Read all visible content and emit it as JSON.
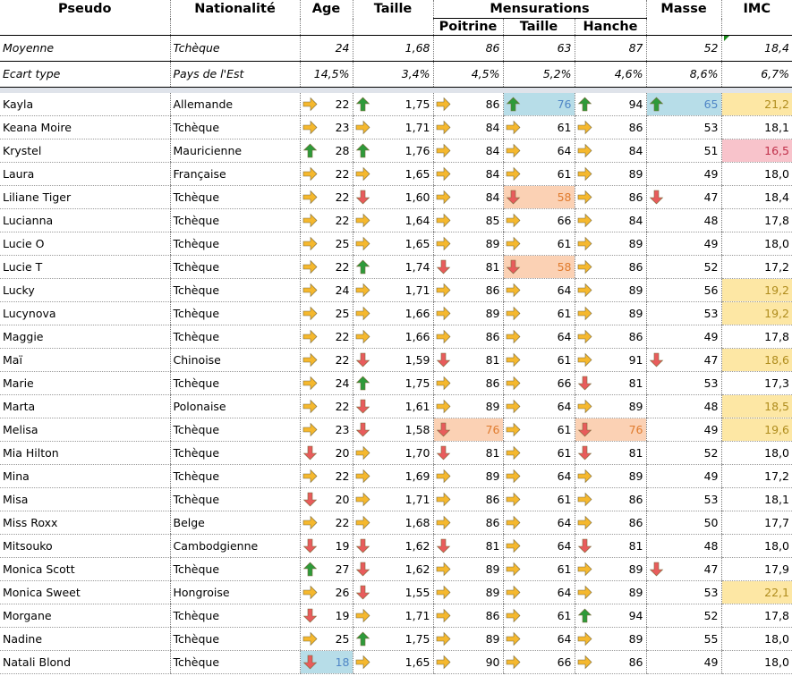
{
  "headers": {
    "pseudo": "Pseudo",
    "nationalite": "Nationalité",
    "age": "Age",
    "taille": "Taille",
    "mensurations": "Mensurations",
    "poitrine": "Poitrine",
    "taille2": "Taille",
    "hanche": "Hanche",
    "masse": "Masse",
    "imc": "IMC"
  },
  "summary": [
    {
      "label": "Moyenne",
      "nat": "Tchèque",
      "age": "24",
      "taille": "1,68",
      "poitrine": "86",
      "taille2": "63",
      "hanche": "87",
      "masse": "52",
      "imc": "18,4"
    },
    {
      "label": "Ecart type",
      "nat": "Pays de l'Est",
      "age": "14,5%",
      "taille": "3,4%",
      "poitrine": "4,5%",
      "taille2": "5,2%",
      "hanche": "4,6%",
      "masse": "8,6%",
      "imc": "6,7%"
    }
  ],
  "colors": {
    "arrow_up": "#2e9a3a",
    "arrow_flat": "#f5b82e",
    "arrow_down": "#e85c5c",
    "highlight_blue": "#b7dde8",
    "highlight_peach": "#fbd1b4",
    "highlight_yellow": "#fde7a4",
    "highlight_pink": "#f8c3cb",
    "blue_text": "#4f86c6",
    "orange_text": "#e07b2e"
  },
  "rows": [
    {
      "name": "Kayla",
      "nat": "Allemande",
      "age": "22",
      "age_i": "flat",
      "taille": "1,75",
      "taille_i": "up",
      "poitrine": "86",
      "poitrine_i": "flat",
      "taille2": "76",
      "taille2_i": "up",
      "taille2_hl": "blue",
      "hanche": "94",
      "hanche_i": "up",
      "masse": "65",
      "masse_i": "up",
      "masse_hl": "blue",
      "imc": "21,2",
      "imc_hl": "yellow"
    },
    {
      "name": "Keana Moire",
      "nat": "Tchèque",
      "age": "23",
      "age_i": "flat",
      "taille": "1,71",
      "taille_i": "flat",
      "poitrine": "84",
      "poitrine_i": "flat",
      "taille2": "61",
      "taille2_i": "flat",
      "hanche": "86",
      "hanche_i": "flat",
      "masse": "53",
      "masse_i": "",
      "imc": "18,1"
    },
    {
      "name": "Krystel",
      "nat": "Mauricienne",
      "age": "28",
      "age_i": "up",
      "taille": "1,76",
      "taille_i": "up",
      "poitrine": "84",
      "poitrine_i": "flat",
      "taille2": "64",
      "taille2_i": "flat",
      "hanche": "84",
      "hanche_i": "flat",
      "masse": "51",
      "masse_i": "",
      "imc": "16,5",
      "imc_hl": "pink"
    },
    {
      "name": "Laura",
      "nat": "Française",
      "age": "22",
      "age_i": "flat",
      "taille": "1,65",
      "taille_i": "flat",
      "poitrine": "84",
      "poitrine_i": "flat",
      "taille2": "61",
      "taille2_i": "flat",
      "hanche": "89",
      "hanche_i": "flat",
      "masse": "49",
      "masse_i": "",
      "imc": "18,0"
    },
    {
      "name": "Liliane Tiger",
      "nat": "Tchèque",
      "age": "22",
      "age_i": "flat",
      "taille": "1,60",
      "taille_i": "down",
      "poitrine": "84",
      "poitrine_i": "flat",
      "taille2": "58",
      "taille2_i": "down",
      "taille2_hl": "peach",
      "hanche": "86",
      "hanche_i": "flat",
      "masse": "47",
      "masse_i": "down",
      "imc": "18,4"
    },
    {
      "name": "Lucianna",
      "nat": "Tchèque",
      "age": "22",
      "age_i": "flat",
      "taille": "1,64",
      "taille_i": "flat",
      "poitrine": "85",
      "poitrine_i": "flat",
      "taille2": "66",
      "taille2_i": "flat",
      "hanche": "84",
      "hanche_i": "flat",
      "masse": "48",
      "masse_i": "",
      "imc": "17,8"
    },
    {
      "name": "Lucie O",
      "nat": "Tchèque",
      "age": "25",
      "age_i": "flat",
      "taille": "1,65",
      "taille_i": "flat",
      "poitrine": "89",
      "poitrine_i": "flat",
      "taille2": "61",
      "taille2_i": "flat",
      "hanche": "89",
      "hanche_i": "flat",
      "masse": "49",
      "masse_i": "",
      "imc": "18,0"
    },
    {
      "name": "Lucie T",
      "nat": "Tchèque",
      "age": "22",
      "age_i": "flat",
      "taille": "1,74",
      "taille_i": "up",
      "poitrine": "81",
      "poitrine_i": "down",
      "taille2": "58",
      "taille2_i": "down",
      "taille2_hl": "peach",
      "hanche": "86",
      "hanche_i": "flat",
      "masse": "52",
      "masse_i": "",
      "imc": "17,2"
    },
    {
      "name": "Lucky",
      "nat": "Tchèque",
      "age": "24",
      "age_i": "flat",
      "taille": "1,71",
      "taille_i": "flat",
      "poitrine": "86",
      "poitrine_i": "flat",
      "taille2": "64",
      "taille2_i": "flat",
      "hanche": "89",
      "hanche_i": "flat",
      "masse": "56",
      "masse_i": "",
      "imc": "19,2",
      "imc_hl": "yellow"
    },
    {
      "name": "Lucynova",
      "nat": "Tchèque",
      "age": "25",
      "age_i": "flat",
      "taille": "1,66",
      "taille_i": "flat",
      "poitrine": "89",
      "poitrine_i": "flat",
      "taille2": "61",
      "taille2_i": "flat",
      "hanche": "89",
      "hanche_i": "flat",
      "masse": "53",
      "masse_i": "",
      "imc": "19,2",
      "imc_hl": "yellow"
    },
    {
      "name": "Maggie",
      "nat": "Tchèque",
      "age": "22",
      "age_i": "flat",
      "taille": "1,66",
      "taille_i": "flat",
      "poitrine": "86",
      "poitrine_i": "flat",
      "taille2": "64",
      "taille2_i": "flat",
      "hanche": "86",
      "hanche_i": "flat",
      "masse": "49",
      "masse_i": "",
      "imc": "17,8"
    },
    {
      "name": "Maï",
      "nat": "Chinoise",
      "age": "22",
      "age_i": "flat",
      "taille": "1,59",
      "taille_i": "down",
      "poitrine": "81",
      "poitrine_i": "down",
      "taille2": "61",
      "taille2_i": "flat",
      "hanche": "91",
      "hanche_i": "flat",
      "masse": "47",
      "masse_i": "down",
      "imc": "18,6",
      "imc_hl": "yellow"
    },
    {
      "name": "Marie",
      "nat": "Tchèque",
      "age": "24",
      "age_i": "flat",
      "taille": "1,75",
      "taille_i": "up",
      "poitrine": "86",
      "poitrine_i": "flat",
      "taille2": "66",
      "taille2_i": "flat",
      "hanche": "81",
      "hanche_i": "down",
      "masse": "53",
      "masse_i": "",
      "imc": "17,3"
    },
    {
      "name": "Marta",
      "nat": "Polonaise",
      "age": "22",
      "age_i": "flat",
      "taille": "1,61",
      "taille_i": "down",
      "poitrine": "89",
      "poitrine_i": "flat",
      "taille2": "64",
      "taille2_i": "flat",
      "hanche": "89",
      "hanche_i": "flat",
      "masse": "48",
      "masse_i": "",
      "imc": "18,5",
      "imc_hl": "yellow"
    },
    {
      "name": "Melisa",
      "nat": "Tchèque",
      "age": "23",
      "age_i": "flat",
      "taille": "1,58",
      "taille_i": "down",
      "poitrine": "76",
      "poitrine_i": "down",
      "poitrine_hl": "peach",
      "taille2": "61",
      "taille2_i": "flat",
      "hanche": "76",
      "hanche_i": "down",
      "hanche_hl": "peach",
      "masse": "49",
      "masse_i": "",
      "imc": "19,6",
      "imc_hl": "yellow"
    },
    {
      "name": "Mia Hilton",
      "nat": "Tchèque",
      "age": "20",
      "age_i": "down",
      "taille": "1,70",
      "taille_i": "flat",
      "poitrine": "81",
      "poitrine_i": "down",
      "taille2": "61",
      "taille2_i": "flat",
      "hanche": "81",
      "hanche_i": "down",
      "masse": "52",
      "masse_i": "",
      "imc": "18,0"
    },
    {
      "name": "Mina",
      "nat": "Tchèque",
      "age": "22",
      "age_i": "flat",
      "taille": "1,69",
      "taille_i": "flat",
      "poitrine": "89",
      "poitrine_i": "flat",
      "taille2": "64",
      "taille2_i": "flat",
      "hanche": "89",
      "hanche_i": "flat",
      "masse": "49",
      "masse_i": "",
      "imc": "17,2"
    },
    {
      "name": "Misa",
      "nat": "Tchèque",
      "age": "20",
      "age_i": "down",
      "taille": "1,71",
      "taille_i": "flat",
      "poitrine": "86",
      "poitrine_i": "flat",
      "taille2": "61",
      "taille2_i": "flat",
      "hanche": "86",
      "hanche_i": "flat",
      "masse": "53",
      "masse_i": "",
      "imc": "18,1"
    },
    {
      "name": "Miss Roxx",
      "nat": "Belge",
      "age": "22",
      "age_i": "flat",
      "taille": "1,68",
      "taille_i": "flat",
      "poitrine": "86",
      "poitrine_i": "flat",
      "taille2": "64",
      "taille2_i": "flat",
      "hanche": "86",
      "hanche_i": "flat",
      "masse": "50",
      "masse_i": "",
      "imc": "17,7"
    },
    {
      "name": "Mitsouko",
      "nat": "Cambodgienne",
      "age": "19",
      "age_i": "down",
      "taille": "1,62",
      "taille_i": "down",
      "poitrine": "81",
      "poitrine_i": "down",
      "taille2": "64",
      "taille2_i": "flat",
      "hanche": "81",
      "hanche_i": "down",
      "masse": "48",
      "masse_i": "",
      "imc": "18,0"
    },
    {
      "name": "Monica Scott",
      "nat": "Tchèque",
      "age": "27",
      "age_i": "up",
      "taille": "1,62",
      "taille_i": "down",
      "poitrine": "89",
      "poitrine_i": "flat",
      "taille2": "61",
      "taille2_i": "flat",
      "hanche": "89",
      "hanche_i": "flat",
      "masse": "47",
      "masse_i": "down",
      "imc": "17,9"
    },
    {
      "name": "Monica Sweet",
      "nat": "Hongroise",
      "age": "26",
      "age_i": "flat",
      "taille": "1,55",
      "taille_i": "down",
      "poitrine": "89",
      "poitrine_i": "flat",
      "taille2": "64",
      "taille2_i": "flat",
      "hanche": "89",
      "hanche_i": "flat",
      "masse": "53",
      "masse_i": "",
      "imc": "22,1",
      "imc_hl": "yellow"
    },
    {
      "name": "Morgane",
      "nat": "Tchèque",
      "age": "19",
      "age_i": "down",
      "taille": "1,71",
      "taille_i": "flat",
      "poitrine": "86",
      "poitrine_i": "flat",
      "taille2": "61",
      "taille2_i": "flat",
      "hanche": "94",
      "hanche_i": "up",
      "masse": "52",
      "masse_i": "",
      "imc": "17,8"
    },
    {
      "name": "Nadine",
      "nat": "Tchèque",
      "age": "25",
      "age_i": "flat",
      "taille": "1,75",
      "taille_i": "up",
      "poitrine": "89",
      "poitrine_i": "flat",
      "taille2": "64",
      "taille2_i": "flat",
      "hanche": "89",
      "hanche_i": "flat",
      "masse": "55",
      "masse_i": "",
      "imc": "18,0"
    },
    {
      "name": "Natali Blond",
      "nat": "Tchèque",
      "age": "18",
      "age_i": "down",
      "age_hl": "blue",
      "taille": "1,65",
      "taille_i": "flat",
      "poitrine": "90",
      "poitrine_i": "flat",
      "taille2": "66",
      "taille2_i": "flat",
      "hanche": "86",
      "hanche_i": "flat",
      "masse": "49",
      "masse_i": "",
      "imc": "18,0"
    }
  ]
}
